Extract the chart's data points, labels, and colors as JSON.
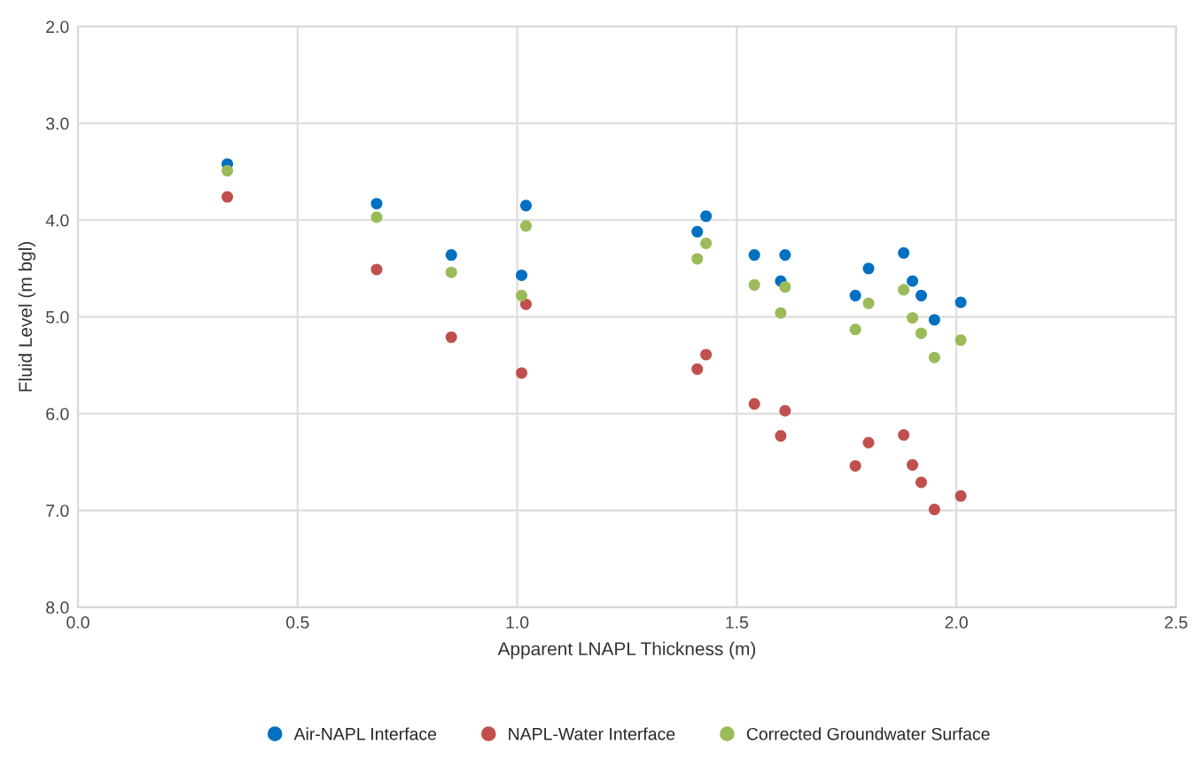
{
  "chart_data": {
    "type": "scatter",
    "xlabel": "Apparent LNAPL Thickness (m)",
    "ylabel": "Fluid Level (m bgl)",
    "x": [
      0.34,
      0.68,
      0.85,
      1.02,
      1.01,
      1.43,
      1.41,
      1.54,
      1.61,
      1.6,
      1.77,
      1.8,
      1.88,
      1.9,
      1.92,
      1.95,
      2.01
    ],
    "series": [
      {
        "name": "Air-NAPL Interface",
        "color": "#0070c0",
        "values": [
          3.42,
          3.83,
          4.36,
          3.85,
          4.57,
          3.96,
          4.12,
          4.36,
          4.36,
          4.63,
          4.78,
          4.5,
          4.34,
          4.63,
          4.78,
          5.03,
          4.85
        ]
      },
      {
        "name": "NAPL-Water Interface",
        "color": "#c0504d",
        "values": [
          3.76,
          4.51,
          5.21,
          4.87,
          5.58,
          5.39,
          5.54,
          5.9,
          5.97,
          6.23,
          6.54,
          6.3,
          6.22,
          6.53,
          6.71,
          6.99,
          6.85
        ]
      },
      {
        "name": "Corrected Groundwater Surface",
        "color": "#9bbb59",
        "values": [
          3.49,
          3.97,
          4.54,
          4.06,
          4.78,
          4.24,
          4.4,
          4.67,
          4.69,
          4.96,
          5.13,
          4.86,
          4.72,
          5.01,
          5.17,
          5.42,
          5.24
        ]
      }
    ],
    "xlim": [
      0,
      2.5
    ],
    "xticks": [
      {
        "value": 0,
        "label": "0.0"
      },
      {
        "value": 0.5,
        "label": "0.5"
      },
      {
        "value": 1,
        "label": "1.0"
      },
      {
        "value": 1.5,
        "label": "1.5"
      },
      {
        "value": 2,
        "label": "2.0"
      },
      {
        "value": 2.5,
        "label": "2.5"
      }
    ],
    "ylim": [
      8,
      2
    ],
    "yticks": [
      {
        "value": 2,
        "label": "2.0"
      },
      {
        "value": 3,
        "label": "3.0"
      },
      {
        "value": 4,
        "label": "4.0"
      },
      {
        "value": 5,
        "label": "5.0"
      },
      {
        "value": 6,
        "label": "6.0"
      },
      {
        "value": 7,
        "label": "7.0"
      },
      {
        "value": 8,
        "label": "8.0"
      }
    ],
    "grid": true,
    "legend": "bottom",
    "marker": "circle"
  }
}
